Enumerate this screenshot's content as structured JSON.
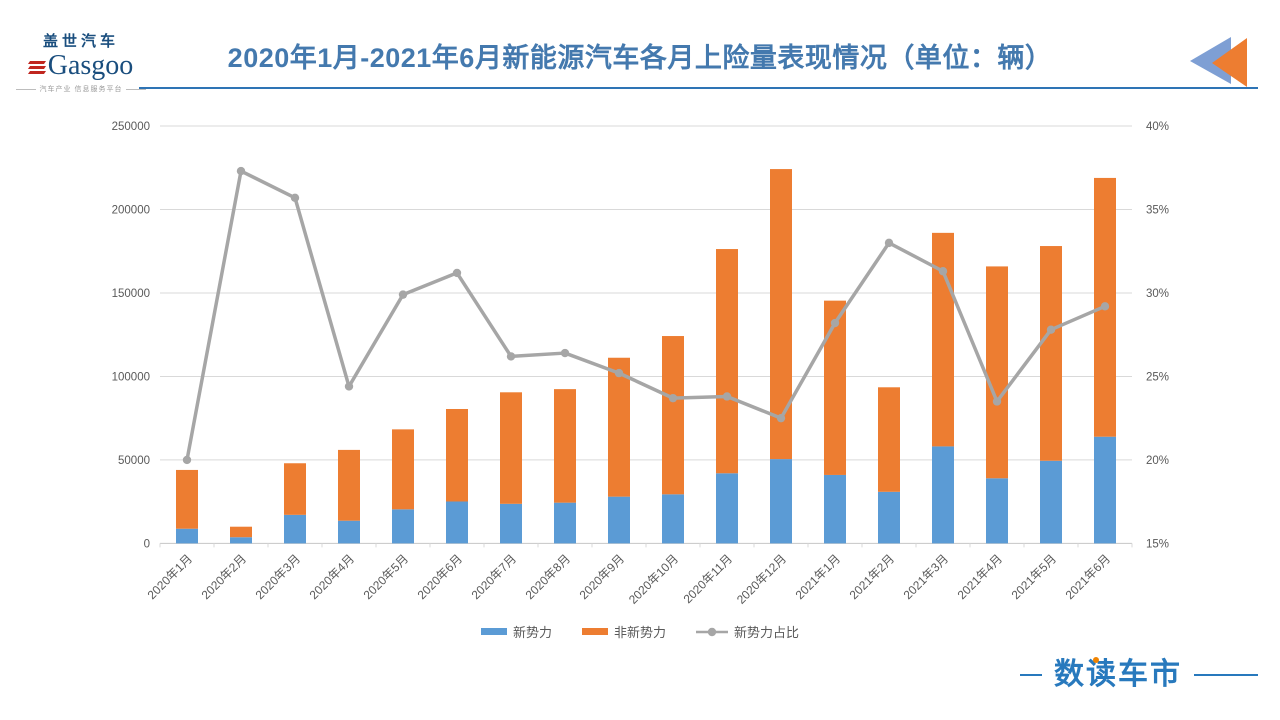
{
  "header": {
    "logo": {
      "cn": "盖世汽车",
      "en": "Gasgoo",
      "tagline": "汽车产业 信息服务平台"
    },
    "title": "2020年1月-2021年6月新能源汽车各月上险量表现情况（单位：辆）"
  },
  "footer": {
    "brand": "数读车市"
  },
  "colors": {
    "bar_new": "#5B9BD5",
    "bar_other": "#ED7D31",
    "ratio_line": "#A6A6A6",
    "title_blue": "#4479AE",
    "underline_blue": "#2E74B5",
    "grid": "#D9D9D9",
    "axis_text": "#595959",
    "triangle_blue": "#7E9FD4",
    "triangle_orange": "#ED7D31"
  },
  "chart_data": {
    "type": "bar",
    "stacked": true,
    "grid": true,
    "legend_position": "bottom",
    "categories": [
      "2020年1月",
      "2020年2月",
      "2020年3月",
      "2020年4月",
      "2020年5月",
      "2020年6月",
      "2020年7月",
      "2020年8月",
      "2020年9月",
      "2020年10月",
      "2020年11月",
      "2020年12月",
      "2021年1月",
      "2021年2月",
      "2021年3月",
      "2021年4月",
      "2021年5月",
      "2021年6月"
    ],
    "series": [
      {
        "name": "新势力",
        "type": "bar",
        "color": "#5B9BD5",
        "values": [
          8800,
          3700,
          17100,
          13600,
          20400,
          25100,
          23700,
          24400,
          28000,
          29400,
          42000,
          50500,
          41000,
          30900,
          58100,
          39000,
          49500,
          63900
        ]
      },
      {
        "name": "非新势力",
        "type": "bar",
        "color": "#ED7D31",
        "values": [
          35200,
          6300,
          30900,
          42400,
          47900,
          55400,
          66800,
          68000,
          83200,
          94800,
          134300,
          173700,
          104400,
          62600,
          127900,
          126900,
          128600,
          155000
        ]
      },
      {
        "name": "新势力占比",
        "type": "line",
        "axis": "right",
        "color": "#A6A6A6",
        "values": [
          20.0,
          37.3,
          35.7,
          24.4,
          29.9,
          31.2,
          26.2,
          26.4,
          25.2,
          23.7,
          23.8,
          22.5,
          28.2,
          33.0,
          31.3,
          23.5,
          27.8,
          29.2
        ]
      }
    ],
    "totals": [
      44000,
      10000,
      48000,
      56000,
      68300,
      80500,
      90500,
      92400,
      111200,
      124200,
      176300,
      224200,
      145400,
      93500,
      186000,
      165900,
      178100,
      218900
    ],
    "left_axis": {
      "min": 0,
      "max": 250000,
      "step": 50000,
      "ticks": [
        "0",
        "50000",
        "100000",
        "150000",
        "200000",
        "250000"
      ]
    },
    "right_axis": {
      "min": 15,
      "max": 40,
      "step": 5,
      "ticks": [
        "15%",
        "20%",
        "25%",
        "30%",
        "35%",
        "40%"
      ]
    }
  }
}
